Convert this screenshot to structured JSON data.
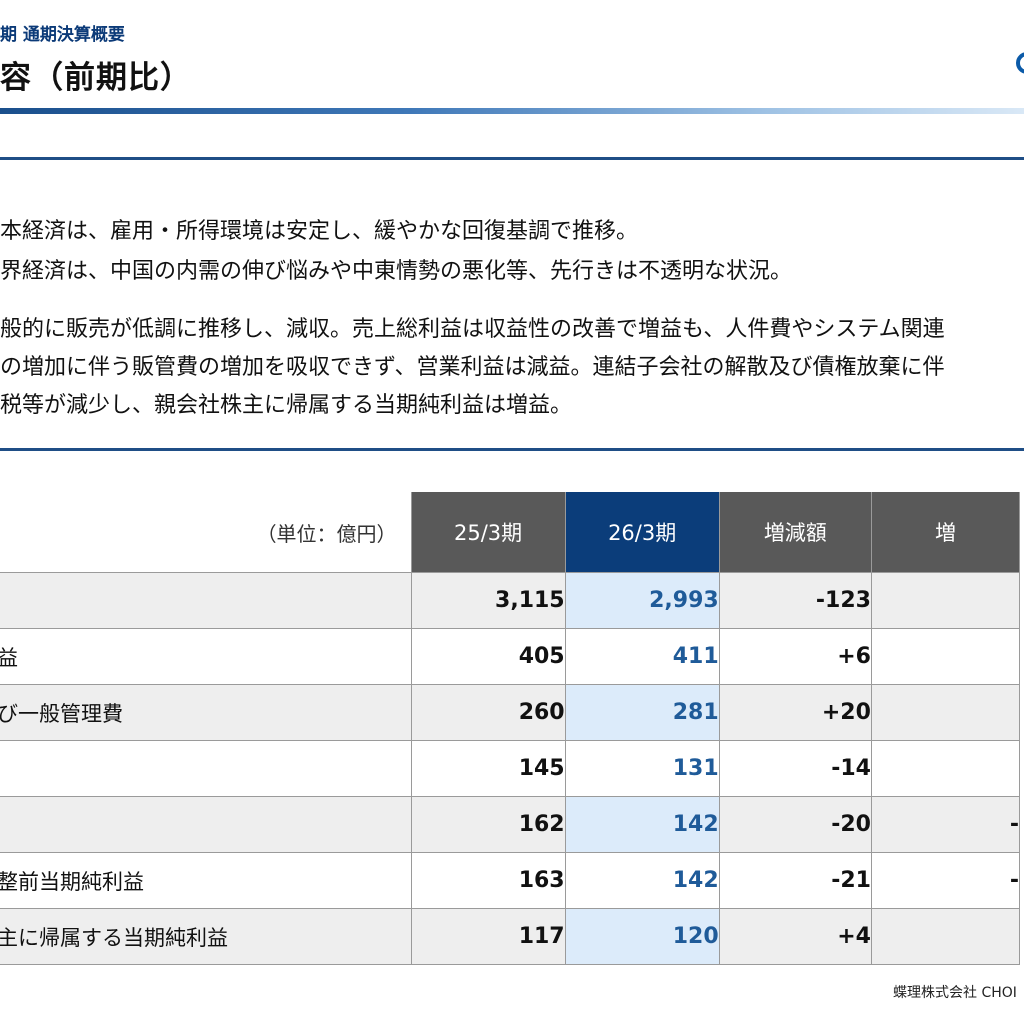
{
  "header": {
    "subheader": "期 通期決算概要",
    "title": "容（前期比）"
  },
  "summary": {
    "lines": [
      "本経済は、雇用・所得環境は安定し、緩やかな回復基調で推移。",
      "界経済は、中国の内需の伸び悩みや中東情勢の悪化等、先行きは不透明な状況。",
      "般的に販売が低調に推移し、減収。売上総利益は収益性の改善で増益も、人件費やシステム関連",
      "の増加に伴う販管費の増加を吸収できず、営業利益は減益。連結子会社の解散及び債権放棄に伴",
      "税等が減少し、親会社株主に帰属する当期純利益は増益。"
    ]
  },
  "table": {
    "unit": "（単位：億円）",
    "columns": [
      "25/3期",
      "26/3期",
      "増減額",
      "増"
    ],
    "rows": [
      {
        "label": "",
        "values": [
          "3,115",
          "2,993",
          "-123",
          ""
        ]
      },
      {
        "label": "益",
        "values": [
          "405",
          "411",
          "+6",
          ""
        ]
      },
      {
        "label": "び一般管理費",
        "values": [
          "260",
          "281",
          "+20",
          ""
        ]
      },
      {
        "label": "",
        "values": [
          "145",
          "131",
          "-14",
          ""
        ]
      },
      {
        "label": "",
        "values": [
          "162",
          "142",
          "-20",
          "-"
        ]
      },
      {
        "label": "整前当期純利益",
        "values": [
          "163",
          "142",
          "-21",
          "-"
        ]
      },
      {
        "label": "主に帰属する当期純利益",
        "values": [
          "117",
          "120",
          "+4",
          ""
        ]
      }
    ]
  },
  "footer": {
    "company": "蝶理株式会社 CHOI"
  },
  "colors": {
    "header_gray": "#595959",
    "header_current": "#0b3d7a",
    "current_value": "#1f5b99",
    "rule": "#1f4e86"
  }
}
